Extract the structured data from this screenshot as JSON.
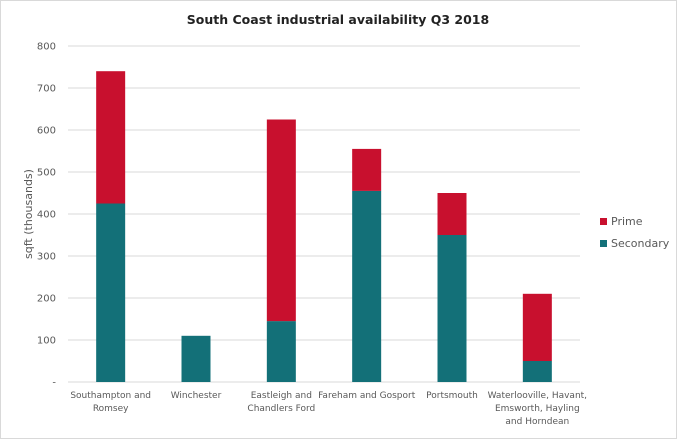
{
  "chart_data": {
    "type": "bar",
    "stacked": true,
    "title": "South Coast industrial availability Q3  2018",
    "xlabel": "",
    "ylabel": "sqft  (thousands)",
    "ylim": [
      0,
      800
    ],
    "yticks": [
      0,
      100,
      200,
      300,
      400,
      500,
      600,
      700,
      800
    ],
    "ytick_labels": [
      "-",
      "100",
      "200",
      "300",
      "400",
      "500",
      "600",
      "700",
      "800"
    ],
    "grid": true,
    "legend_position": "right",
    "categories": [
      [
        "Southampton and",
        "Romsey"
      ],
      [
        "Winchester"
      ],
      [
        "Eastleigh and",
        "Chandlers Ford"
      ],
      [
        "Fareham and Gosport"
      ],
      [
        "Portsmouth"
      ],
      [
        "Waterlooville, Havant,",
        "Emsworth, Hayling",
        "and Horndean"
      ]
    ],
    "series": [
      {
        "name": "Secondary",
        "color": "#137078",
        "values": [
          425,
          110,
          145,
          455,
          350,
          50
        ]
      },
      {
        "name": "Prime",
        "color": "#c8102e",
        "values": [
          315,
          0,
          480,
          100,
          100,
          160
        ]
      }
    ],
    "legend_order": [
      "Prime",
      "Secondary"
    ]
  }
}
